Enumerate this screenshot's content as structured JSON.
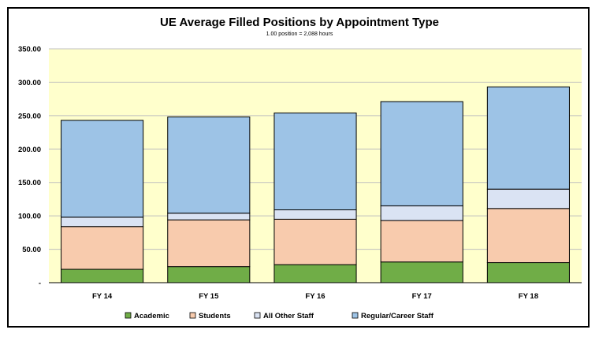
{
  "chart_data": {
    "type": "bar",
    "stacked": true,
    "title": "UE Average Filled Positions by Appointment Type",
    "subtitle": "1.00 position = 2,088 hours",
    "xlabel": "",
    "ylabel": "",
    "categories": [
      "FY 14",
      "FY 15",
      "FY 16",
      "FY 17",
      "FY 18"
    ],
    "ylim": [
      0,
      350
    ],
    "yticks": [
      0,
      50,
      100,
      150,
      200,
      250,
      300,
      350
    ],
    "ytick_labels": [
      "-",
      "50.00",
      "100.00",
      "150.00",
      "200.00",
      "250.00",
      "300.00",
      "350.00"
    ],
    "grid": true,
    "legend_position": "bottom",
    "plot_background": "#FFFFCC",
    "series": [
      {
        "name": "Academic",
        "color": "#70AD47",
        "values": [
          20,
          24,
          27,
          31,
          30
        ]
      },
      {
        "name": "Students",
        "color": "#F8CBAD",
        "values": [
          64,
          70,
          68,
          62,
          81
        ]
      },
      {
        "name": "All Other Staff",
        "color": "#DAE3F3",
        "values": [
          14,
          10,
          14,
          22,
          29
        ]
      },
      {
        "name": "Regular/Career Staff",
        "color": "#9DC3E6",
        "values": [
          145,
          144,
          145,
          156,
          153
        ]
      }
    ]
  }
}
